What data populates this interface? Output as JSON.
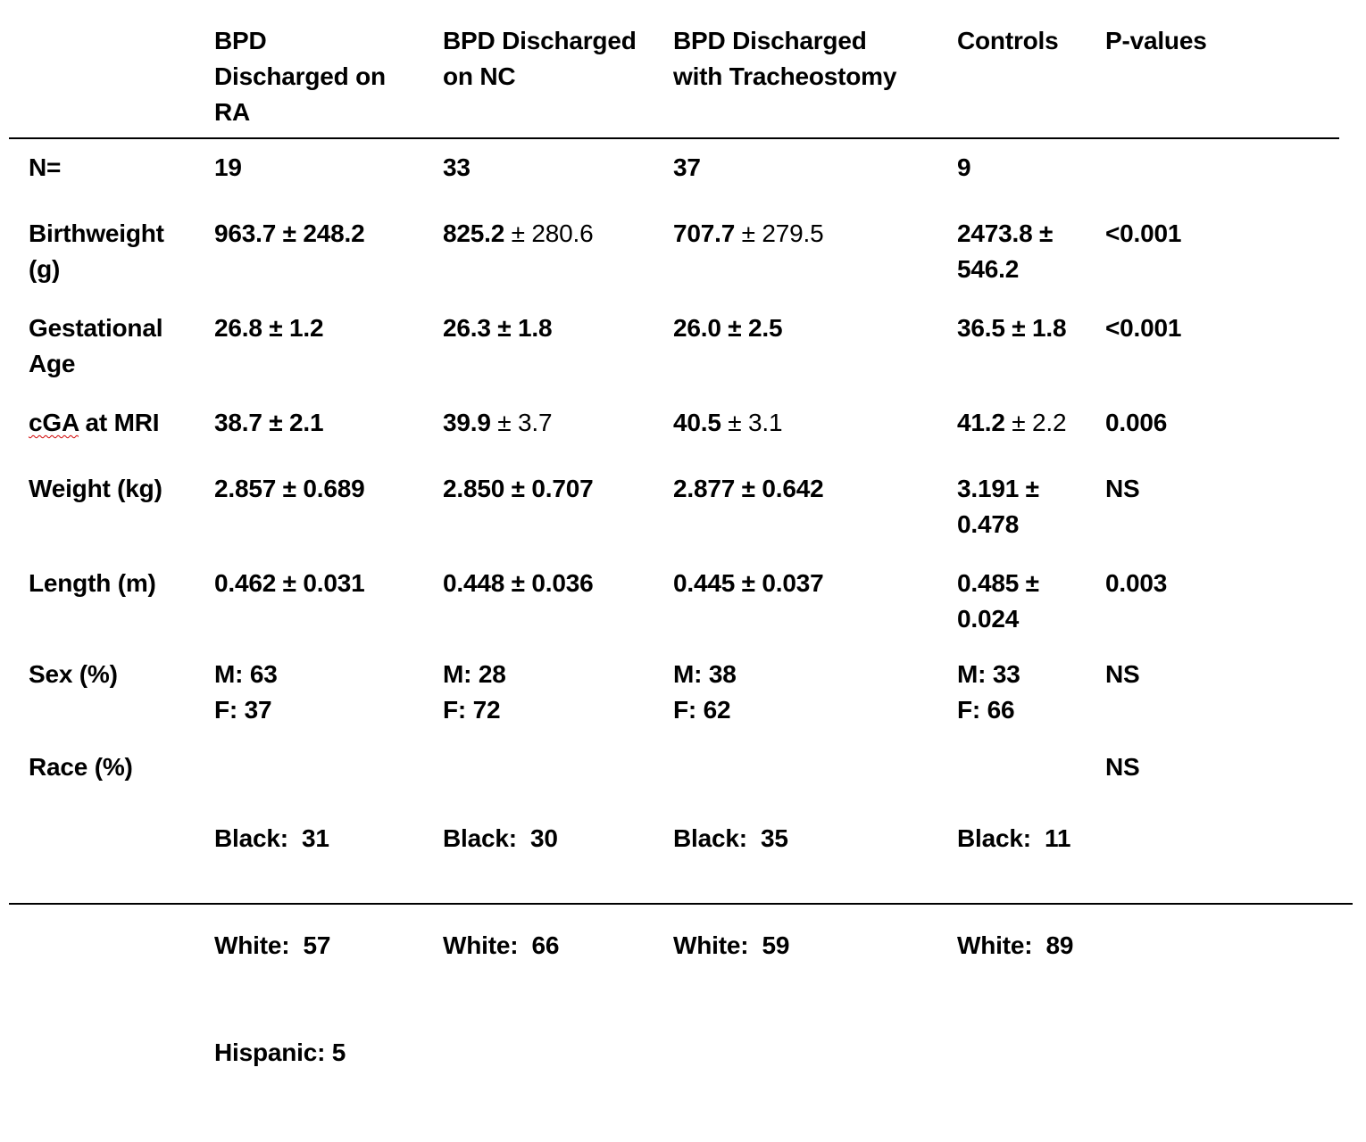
{
  "header": {
    "row_label": "",
    "col1": [
      "BPD",
      "Discharged on",
      "RA"
    ],
    "col2": [
      "BPD Discharged",
      "on NC"
    ],
    "col3": [
      "BPD Discharged",
      "with Tracheostomy"
    ],
    "col4": [
      "Controls"
    ],
    "col5": [
      "P-values"
    ]
  },
  "rows": [
    {
      "label": [
        "N="
      ],
      "c1": {
        "bold": "19",
        "rest": ""
      },
      "c2": {
        "bold": "33",
        "rest": ""
      },
      "c3": {
        "bold": "37",
        "rest": ""
      },
      "c4": {
        "bold": "9",
        "rest": ""
      },
      "p": ""
    },
    {
      "label": [
        "Birthweight",
        "(g)"
      ],
      "c1": {
        "bold": "963.7 ± 248.2",
        "rest": ""
      },
      "c2": {
        "bold": "825.2",
        "rest": " ± 280.6"
      },
      "c3": {
        "bold": "707.7",
        "rest": " ± 279.5"
      },
      "c4": {
        "lines": [
          "2473.8 ±",
          "546.2"
        ]
      },
      "p": "<0.001"
    },
    {
      "label": [
        "Gestational",
        "Age"
      ],
      "c1": {
        "bold": "26.8 ± 1.2",
        "rest": ""
      },
      "c2": {
        "bold": "26.3 ± 1.8",
        "rest": ""
      },
      "c3": {
        "bold": "26.0 ± 2.5",
        "rest": ""
      },
      "c4": {
        "bold": "36.5 ± 1.8",
        "rest": ""
      },
      "p": "<0.001"
    },
    {
      "label_squiggle": "cGA",
      "label_rest": " at MRI",
      "c1": {
        "bold": "38.7 ± 2.1",
        "rest": ""
      },
      "c2": {
        "bold": "39.9",
        "rest": " ± 3.7"
      },
      "c3": {
        "bold": "40.5",
        "rest": " ± 3.1"
      },
      "c4": {
        "bold": "41.2",
        "rest": " ± 2.2"
      },
      "p": "0.006"
    },
    {
      "label": [
        "Weight (kg)"
      ],
      "c1": {
        "bold": "2.857 ± 0.689",
        "rest": ""
      },
      "c2": {
        "bold": "2.850 ± 0.707",
        "rest": ""
      },
      "c3": {
        "bold": "2.877 ± 0.642",
        "rest": ""
      },
      "c4": {
        "lines": [
          "3.191 ±",
          "0.478"
        ]
      },
      "p": "NS"
    },
    {
      "label": [
        "Length (m)"
      ],
      "c1": {
        "bold": "0.462 ± 0.031",
        "rest": ""
      },
      "c2": {
        "bold": "0.448 ± 0.036",
        "rest": ""
      },
      "c3": {
        "bold": "0.445 ± 0.037",
        "rest": ""
      },
      "c4": {
        "lines": [
          "0.485 ±",
          "0.024"
        ]
      },
      "p": "0.003"
    },
    {
      "label": [
        "Sex (%)"
      ],
      "c1": {
        "lines": [
          "M: 63",
          "F: 37"
        ]
      },
      "c2": {
        "lines": [
          "M: 28",
          "F: 72"
        ]
      },
      "c3": {
        "lines": [
          "M: 38",
          "F: 62"
        ]
      },
      "c4": {
        "lines": [
          "M: 33",
          "F: 66"
        ]
      },
      "p": "NS"
    },
    {
      "label": [
        "Race (%)"
      ],
      "c1": {
        "lines": [
          "Black:  31",
          "White:  57",
          "Hispanic: 5"
        ]
      },
      "c2": {
        "lines": [
          "Black:  30",
          "White:  66"
        ]
      },
      "c3": {
        "lines": [
          "Black:  35",
          "White:  59"
        ]
      },
      "c4": {
        "lines": [
          "Black:  11",
          "White:  89"
        ]
      },
      "p": "NS"
    }
  ]
}
